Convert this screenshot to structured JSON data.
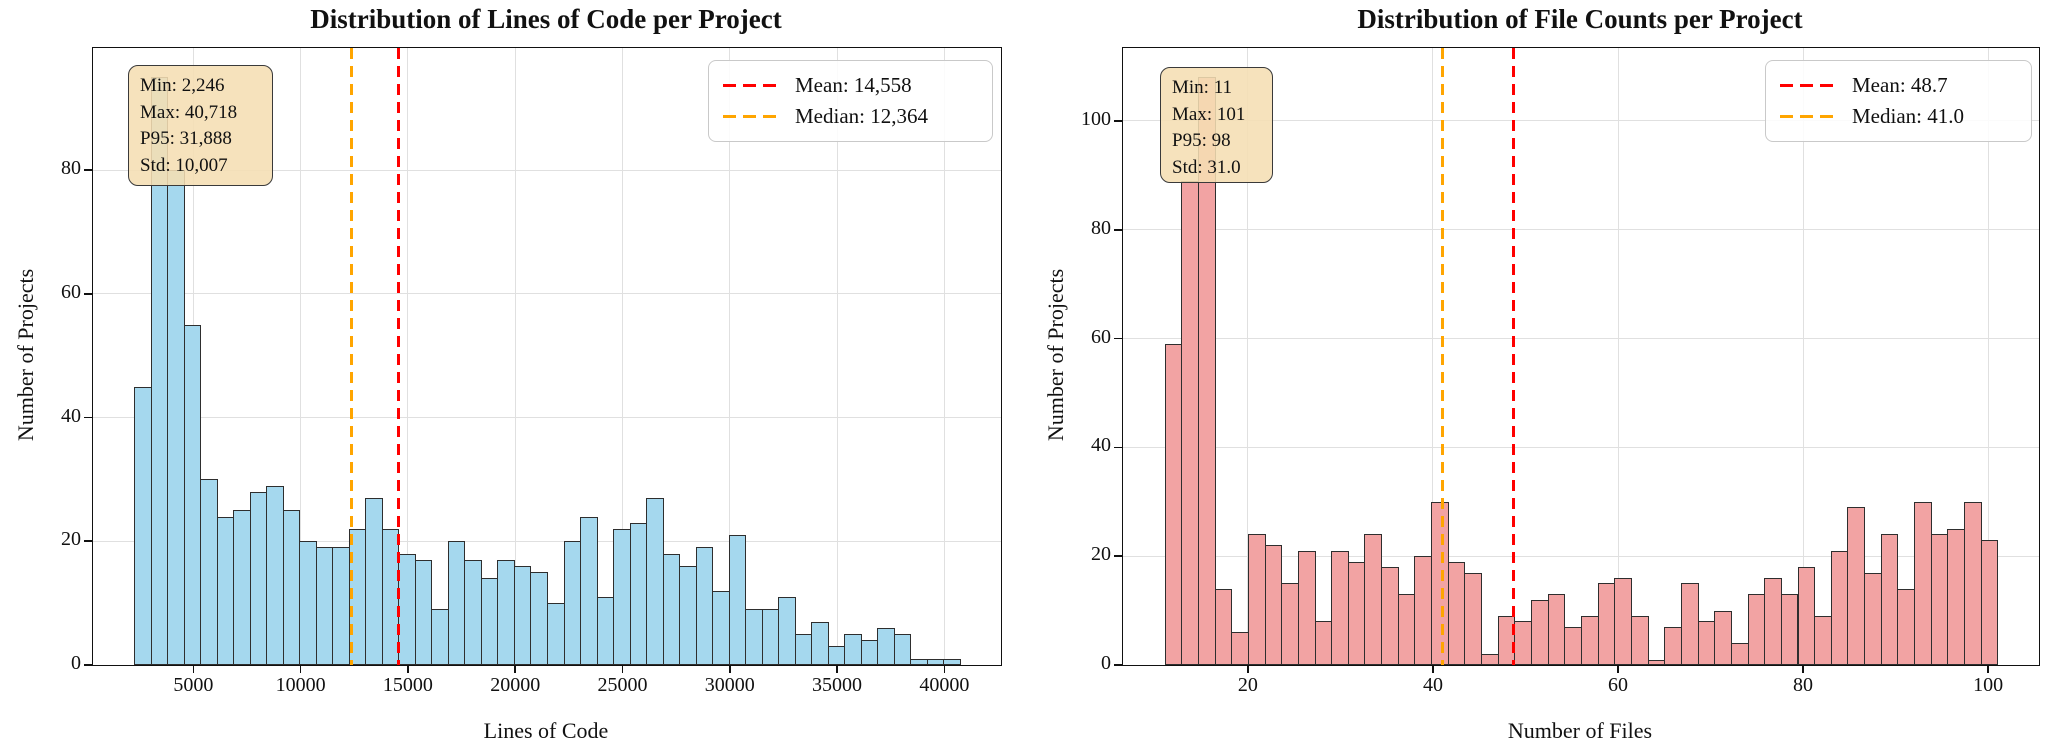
{
  "figure_title": "",
  "chart_data": [
    {
      "type": "bar",
      "title": "Distribution of Lines of Code per Project",
      "xlabel": "Lines of Code",
      "ylabel": "Number of Projects",
      "bin_start": 2246,
      "bin_width": 769.44,
      "values": [
        45,
        95,
        80,
        55,
        30,
        24,
        25,
        28,
        29,
        25,
        20,
        19,
        19,
        22,
        27,
        22,
        18,
        17,
        9,
        20,
        17,
        14,
        17,
        16,
        15,
        10,
        20,
        24,
        11,
        22,
        23,
        27,
        18,
        16,
        19,
        12,
        21,
        9,
        9,
        11,
        5,
        7,
        3,
        5,
        4,
        6,
        5,
        1,
        1,
        1
      ],
      "xlim": [
        322,
        42642
      ],
      "ylim": [
        0,
        99.75
      ],
      "xticks": [
        5000,
        10000,
        15000,
        20000,
        25000,
        30000,
        35000,
        40000
      ],
      "xtick_labels": [
        "5000",
        "10000",
        "15000",
        "20000",
        "25000",
        "30000",
        "35000",
        "40000"
      ],
      "yticks": [
        0,
        20,
        40,
        60,
        80
      ],
      "ytick_labels": [
        "0",
        "20",
        "40",
        "60",
        "80"
      ],
      "grid": true,
      "bar_color": "#a5d8ee",
      "bar_edge_color": "#2e2e2e",
      "mean": {
        "value": 14558,
        "label": "Mean: 14,558",
        "color": "#ff0000"
      },
      "median": {
        "value": 12364,
        "label": "Median: 12,364",
        "color": "#ffa500"
      },
      "stats_box": {
        "lines": [
          "Min: 2,246",
          "Max: 40,718",
          "P95: 31,888",
          "Std: 10,007"
        ],
        "bg_color": "#f5deb3"
      },
      "legend_position": "upper right"
    },
    {
      "type": "bar",
      "title": "Distribution of File Counts per Project",
      "xlabel": "Number of Files",
      "ylabel": "Number of Projects",
      "bin_start": 11,
      "bin_width": 1.8,
      "values": [
        59,
        89,
        108,
        14,
        6,
        24,
        22,
        15,
        21,
        8,
        21,
        19,
        24,
        18,
        13,
        20,
        30,
        19,
        17,
        2,
        9,
        8,
        12,
        13,
        7,
        9,
        15,
        16,
        9,
        1,
        7,
        15,
        8,
        10,
        4,
        13,
        16,
        13,
        18,
        9,
        21,
        29,
        17,
        24,
        14,
        30,
        24,
        25,
        30,
        23
      ],
      "xlim": [
        6.5,
        105.5
      ],
      "ylim": [
        0,
        113.4
      ],
      "xticks": [
        20,
        40,
        60,
        80,
        100
      ],
      "xtick_labels": [
        "20",
        "40",
        "60",
        "80",
        "100"
      ],
      "yticks": [
        0,
        20,
        40,
        60,
        80,
        100
      ],
      "ytick_labels": [
        "0",
        "20",
        "40",
        "60",
        "80",
        "100"
      ],
      "grid": true,
      "bar_color": "#f2a3a3",
      "bar_edge_color": "#2e2e2e",
      "mean": {
        "value": 48.7,
        "label": "Mean: 48.7",
        "color": "#ff0000"
      },
      "median": {
        "value": 41.0,
        "label": "Median: 41.0",
        "color": "#ffa500"
      },
      "stats_box": {
        "lines": [
          "Min: 11",
          "Max: 101",
          "P95: 98",
          "Std: 31.0"
        ],
        "bg_color": "#f5deb3"
      },
      "legend_position": "upper right"
    }
  ]
}
